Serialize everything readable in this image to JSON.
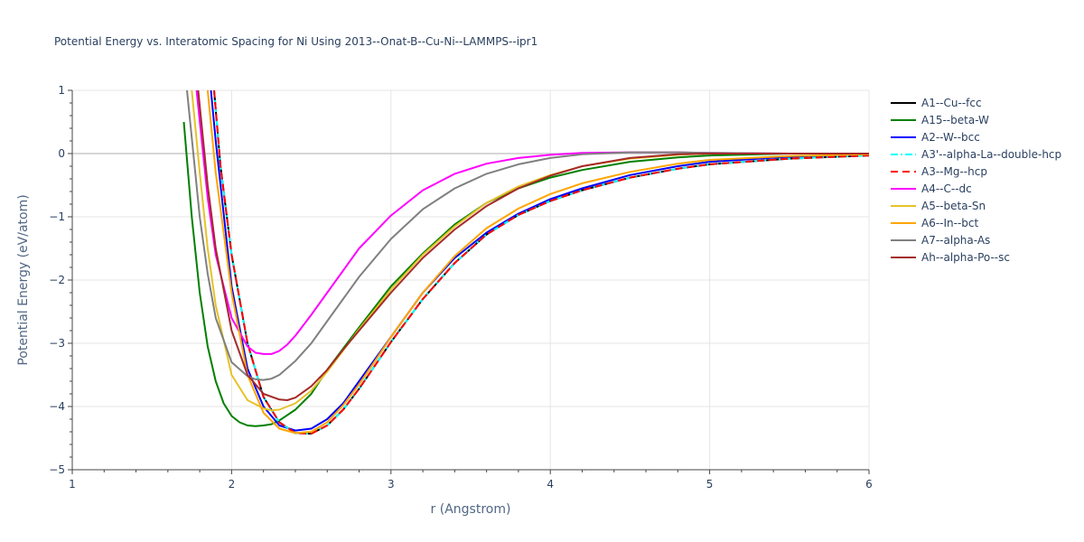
{
  "chart_data": {
    "type": "line",
    "title": "Potential Energy vs. Interatomic Spacing for Ni Using 2013--Onat-B--Cu-Ni--LAMMPS--ipr1",
    "xlabel": "r (Angstrom)",
    "ylabel": "Potential Energy (eV/atom)",
    "xlim": [
      1,
      6
    ],
    "ylim": [
      -5,
      1
    ],
    "xticks": [
      1,
      2,
      3,
      4,
      5,
      6
    ],
    "yticks": [
      1,
      0,
      -1,
      -2,
      -3,
      -4,
      -5
    ],
    "ytick_labels": [
      "1",
      "0",
      "−1",
      "−2",
      "−3",
      "−4",
      "−5"
    ],
    "grid": true,
    "legend_position": "right",
    "series": [
      {
        "name": "A1--Cu--fcc",
        "color": "#000000",
        "dash": "solid",
        "x": [
          1.89,
          1.93,
          2.0,
          2.1,
          2.2,
          2.3,
          2.4,
          2.5,
          2.6,
          2.7,
          2.8,
          2.9,
          3.0,
          3.2,
          3.4,
          3.6,
          3.8,
          4.0,
          4.2,
          4.5,
          4.8,
          5.0,
          5.5,
          6.0
        ],
        "y": [
          1.0,
          -0.2,
          -1.6,
          -3.0,
          -3.85,
          -4.25,
          -4.42,
          -4.43,
          -4.3,
          -4.05,
          -3.72,
          -3.35,
          -2.98,
          -2.3,
          -1.73,
          -1.28,
          -0.97,
          -0.75,
          -0.58,
          -0.38,
          -0.24,
          -0.17,
          -0.08,
          -0.03
        ]
      },
      {
        "name": "A15--beta-W",
        "color": "#008000",
        "dash": "solid",
        "x": [
          1.7,
          1.75,
          1.8,
          1.85,
          1.9,
          1.95,
          2.0,
          2.05,
          2.1,
          2.15,
          2.2,
          2.25,
          2.3,
          2.4,
          2.5,
          2.6,
          2.8,
          3.0,
          3.2,
          3.4,
          3.6,
          3.8,
          4.0,
          4.2,
          4.5,
          4.8,
          5.0,
          5.5,
          6.0
        ],
        "y": [
          0.5,
          -1.0,
          -2.2,
          -3.05,
          -3.6,
          -3.95,
          -4.15,
          -4.25,
          -4.3,
          -4.31,
          -4.3,
          -4.28,
          -4.22,
          -4.05,
          -3.8,
          -3.42,
          -2.75,
          -2.1,
          -1.58,
          -1.12,
          -0.78,
          -0.55,
          -0.38,
          -0.26,
          -0.13,
          -0.06,
          -0.03,
          0.0,
          0.0
        ]
      },
      {
        "name": "A2--W--bcc",
        "color": "#0000ff",
        "dash": "solid",
        "x": [
          1.87,
          1.9,
          2.0,
          2.1,
          2.2,
          2.3,
          2.4,
          2.5,
          2.6,
          2.7,
          2.8,
          2.9,
          3.0,
          3.2,
          3.4,
          3.6,
          3.8,
          4.0,
          4.2,
          4.5,
          4.8,
          5.0,
          5.5,
          6.0
        ],
        "y": [
          1.0,
          0.2,
          -2.1,
          -3.4,
          -4.0,
          -4.3,
          -4.38,
          -4.35,
          -4.2,
          -3.95,
          -3.6,
          -3.25,
          -2.9,
          -2.2,
          -1.65,
          -1.25,
          -0.95,
          -0.72,
          -0.55,
          -0.34,
          -0.2,
          -0.13,
          -0.05,
          -0.02
        ]
      },
      {
        "name": "A3'--alpha-La--double-hcp",
        "color": "#00ffff",
        "dash": "dashdot",
        "x": [
          1.89,
          1.93,
          2.0,
          2.1,
          2.2,
          2.3,
          2.4,
          2.5,
          2.6,
          2.7,
          2.8,
          2.9,
          3.0,
          3.2,
          3.4,
          3.6,
          3.8,
          4.0,
          4.2,
          4.5,
          4.8,
          5.0,
          5.5,
          6.0
        ],
        "y": [
          1.0,
          -0.2,
          -1.6,
          -3.0,
          -3.85,
          -4.25,
          -4.42,
          -4.43,
          -4.3,
          -4.05,
          -3.72,
          -3.35,
          -2.98,
          -2.3,
          -1.73,
          -1.28,
          -0.97,
          -0.75,
          -0.58,
          -0.38,
          -0.24,
          -0.17,
          -0.08,
          -0.03
        ]
      },
      {
        "name": "A3--Mg--hcp",
        "color": "#ff0000",
        "dash": "dash",
        "x": [
          1.89,
          1.93,
          2.0,
          2.1,
          2.2,
          2.3,
          2.4,
          2.5,
          2.6,
          2.7,
          2.8,
          2.9,
          3.0,
          3.2,
          3.4,
          3.6,
          3.8,
          4.0,
          4.2,
          4.5,
          4.8,
          5.0,
          5.5,
          6.0
        ],
        "y": [
          1.0,
          -0.2,
          -1.6,
          -3.0,
          -3.85,
          -4.25,
          -4.42,
          -4.43,
          -4.3,
          -4.05,
          -3.72,
          -3.35,
          -2.98,
          -2.3,
          -1.73,
          -1.28,
          -0.97,
          -0.75,
          -0.58,
          -0.38,
          -0.24,
          -0.17,
          -0.08,
          -0.03
        ]
      },
      {
        "name": "A4--C--dc",
        "color": "#ff00ff",
        "dash": "solid",
        "x": [
          1.78,
          1.85,
          1.9,
          2.0,
          2.1,
          2.15,
          2.2,
          2.25,
          2.3,
          2.35,
          2.4,
          2.5,
          2.6,
          2.7,
          2.8,
          3.0,
          3.2,
          3.4,
          3.6,
          3.8,
          4.0,
          4.2,
          4.5,
          4.8,
          5.0,
          5.5,
          6.0
        ],
        "y": [
          1.0,
          -0.7,
          -1.6,
          -2.6,
          -3.05,
          -3.15,
          -3.17,
          -3.17,
          -3.12,
          -3.02,
          -2.88,
          -2.55,
          -2.2,
          -1.85,
          -1.5,
          -0.98,
          -0.58,
          -0.32,
          -0.16,
          -0.07,
          -0.02,
          0.01,
          0.02,
          0.02,
          0.01,
          0.0,
          0.0
        ]
      },
      {
        "name": "A5--beta-Sn",
        "color": "#e6c229",
        "dash": "solid",
        "x": [
          1.75,
          1.8,
          1.85,
          1.9,
          2.0,
          2.1,
          2.2,
          2.25,
          2.3,
          2.4,
          2.5,
          2.6,
          2.8,
          3.0,
          3.2,
          3.4,
          3.6,
          3.8,
          4.0,
          4.2,
          4.5,
          4.8,
          5.0,
          5.5,
          6.0
        ],
        "y": [
          1.0,
          -0.3,
          -1.5,
          -2.4,
          -3.5,
          -3.9,
          -4.03,
          -4.06,
          -4.05,
          -3.95,
          -3.75,
          -3.45,
          -2.78,
          -2.15,
          -1.6,
          -1.15,
          -0.78,
          -0.52,
          -0.34,
          -0.2,
          -0.08,
          -0.02,
          0.0,
          0.0,
          0.0
        ]
      },
      {
        "name": "A6--In--bct",
        "color": "#ffa500",
        "dash": "solid",
        "x": [
          1.85,
          1.9,
          2.0,
          2.1,
          2.2,
          2.3,
          2.4,
          2.5,
          2.6,
          2.7,
          2.8,
          2.9,
          3.0,
          3.2,
          3.4,
          3.6,
          3.8,
          4.0,
          4.2,
          4.5,
          4.8,
          5.0,
          5.5,
          6.0
        ],
        "y": [
          1.0,
          -0.3,
          -2.2,
          -3.5,
          -4.1,
          -4.35,
          -4.42,
          -4.4,
          -4.25,
          -3.98,
          -3.65,
          -3.28,
          -2.9,
          -2.2,
          -1.62,
          -1.18,
          -0.87,
          -0.64,
          -0.47,
          -0.29,
          -0.16,
          -0.1,
          -0.04,
          -0.01
        ]
      },
      {
        "name": "A7--alpha-As",
        "color": "#808080",
        "dash": "solid",
        "x": [
          1.72,
          1.8,
          1.85,
          1.9,
          2.0,
          2.1,
          2.15,
          2.2,
          2.25,
          2.3,
          2.4,
          2.5,
          2.6,
          2.8,
          3.0,
          3.2,
          3.4,
          3.6,
          3.8,
          4.0,
          4.2,
          4.5,
          4.8,
          5.0,
          5.5,
          6.0
        ],
        "y": [
          1.0,
          -1.0,
          -1.9,
          -2.6,
          -3.3,
          -3.52,
          -3.57,
          -3.58,
          -3.56,
          -3.5,
          -3.28,
          -3.0,
          -2.65,
          -1.95,
          -1.35,
          -0.88,
          -0.55,
          -0.32,
          -0.17,
          -0.07,
          -0.01,
          0.02,
          0.02,
          0.01,
          0.0,
          0.0
        ]
      },
      {
        "name": "Ah--alpha-Po--sc",
        "color": "#a52a2a",
        "dash": "solid",
        "x": [
          1.79,
          1.85,
          1.9,
          2.0,
          2.1,
          2.2,
          2.3,
          2.35,
          2.4,
          2.5,
          2.6,
          2.7,
          2.8,
          3.0,
          3.2,
          3.4,
          3.6,
          3.8,
          4.0,
          4.2,
          4.5,
          4.8,
          5.0,
          5.5,
          6.0
        ],
        "y": [
          1.0,
          -0.5,
          -1.5,
          -2.8,
          -3.5,
          -3.8,
          -3.89,
          -3.9,
          -3.86,
          -3.68,
          -3.42,
          -3.1,
          -2.8,
          -2.2,
          -1.65,
          -1.2,
          -0.83,
          -0.55,
          -0.35,
          -0.2,
          -0.07,
          -0.01,
          0.0,
          0.0,
          0.0
        ]
      }
    ]
  }
}
